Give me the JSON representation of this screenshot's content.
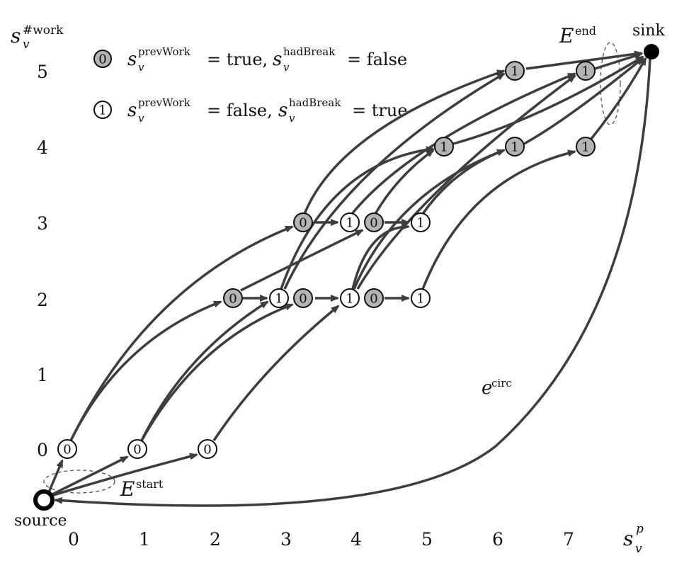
{
  "legend": {
    "gray_symbol": "0",
    "gray_expr": "s",
    "gray_sup1": "prevWork",
    "gray_eq1": "= true,",
    "gray_sup2": "hadBreak",
    "gray_eq2": "= false",
    "white_symbol": "1",
    "white_expr": "s",
    "white_sup1": "prevWork",
    "white_eq1": "= false,",
    "white_sup2": "hadBreak",
    "white_eq2": "= true",
    "sub_v": "v"
  },
  "axes": {
    "y_title_main": "s",
    "y_title_sup": "#work",
    "y_title_sub": "v",
    "y_ticks": [
      "0",
      "1",
      "2",
      "3",
      "4",
      "5"
    ],
    "x_title_main": "s",
    "x_title_sup": "p",
    "x_title_sub": "v",
    "x_ticks": [
      "0",
      "1",
      "2",
      "3",
      "4",
      "5",
      "6",
      "7"
    ]
  },
  "nodes": {
    "source_label": "source",
    "sink_label": "sink",
    "state_labels": [
      "0",
      "1"
    ]
  },
  "annotations": {
    "e_start": "E",
    "e_start_sup": "start",
    "e_end": "E",
    "e_end_sup": "end",
    "e_circ": "e",
    "e_circ_sup": "circ"
  },
  "colors": {
    "gray_node": "#b4b4b4",
    "white_node": "#ffffff",
    "edge": "#3d3d3d"
  }
}
